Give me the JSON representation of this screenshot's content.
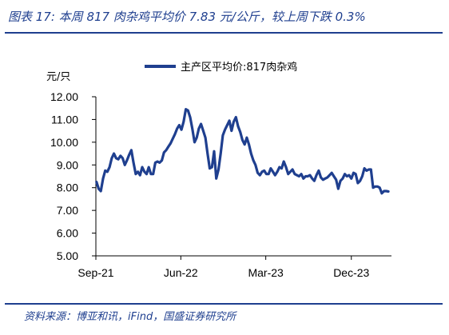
{
  "header": {
    "title": "图表 17:  本周 817 肉杂鸡平均价 7.83 元/公斤，较上周下跌 0.3%"
  },
  "footer": {
    "source": "资料来源：博亚和讯，iFind，国盛证券研究所"
  },
  "chart_data": {
    "type": "line",
    "title": "",
    "ylabel": "元/只",
    "xlabel": "",
    "ylim": [
      5.0,
      12.0
    ],
    "y_ticks": [
      "5.00",
      "6.00",
      "7.00",
      "8.00",
      "9.00",
      "10.00",
      "11.00",
      "12.00"
    ],
    "x_ticks": [
      "Sep-21",
      "Jun-22",
      "Mar-23",
      "Dec-23"
    ],
    "legend": {
      "position": "top",
      "entries": [
        "主产区平均价:817肉杂鸡"
      ]
    },
    "colors": {
      "series": "#1f3f8f"
    },
    "series": [
      {
        "name": "主产区平均价:817肉杂鸡",
        "x": [
          "2021-09-03",
          "2021-09-10",
          "2021-09-17",
          "2021-09-24",
          "2021-10-01",
          "2021-10-08",
          "2021-10-15",
          "2021-10-22",
          "2021-10-29",
          "2021-11-05",
          "2021-11-12",
          "2021-11-19",
          "2021-11-26",
          "2021-12-03",
          "2021-12-10",
          "2021-12-17",
          "2021-12-24",
          "2021-12-31",
          "2022-01-07",
          "2022-01-14",
          "2022-01-21",
          "2022-01-28",
          "2022-02-04",
          "2022-02-11",
          "2022-02-18",
          "2022-02-25",
          "2022-03-04",
          "2022-03-11",
          "2022-03-18",
          "2022-03-25",
          "2022-04-01",
          "2022-04-08",
          "2022-04-15",
          "2022-04-22",
          "2022-04-29",
          "2022-05-06",
          "2022-05-13",
          "2022-05-20",
          "2022-05-27",
          "2022-06-03",
          "2022-06-10",
          "2022-06-17",
          "2022-06-24",
          "2022-07-01",
          "2022-07-08",
          "2022-07-15",
          "2022-07-22",
          "2022-07-29",
          "2022-08-05",
          "2022-08-12",
          "2022-08-19",
          "2022-08-26",
          "2022-09-02",
          "2022-09-09",
          "2022-09-16",
          "2022-09-23",
          "2022-09-30",
          "2022-10-07",
          "2022-10-14",
          "2022-10-21",
          "2022-10-28",
          "2022-11-04",
          "2022-11-11",
          "2022-11-18",
          "2022-11-25",
          "2022-12-02",
          "2022-12-09",
          "2022-12-16",
          "2022-12-23",
          "2022-12-30",
          "2023-01-06",
          "2023-01-13",
          "2023-01-20",
          "2023-01-27",
          "2023-02-03",
          "2023-02-10",
          "2023-02-17",
          "2023-02-24",
          "2023-03-03",
          "2023-03-10",
          "2023-03-17",
          "2023-03-24",
          "2023-03-31",
          "2023-04-07",
          "2023-04-14",
          "2023-04-21",
          "2023-04-28",
          "2023-05-05",
          "2023-05-12",
          "2023-05-19",
          "2023-05-26",
          "2023-06-02",
          "2023-06-09",
          "2023-06-16",
          "2023-06-23",
          "2023-06-30",
          "2023-07-07",
          "2023-07-14",
          "2023-07-21",
          "2023-07-28",
          "2023-08-04",
          "2023-08-11",
          "2023-08-18",
          "2023-08-25",
          "2023-09-01",
          "2023-09-08",
          "2023-09-15",
          "2023-09-22",
          "2023-09-29",
          "2023-10-06",
          "2023-10-13",
          "2023-10-20",
          "2023-10-27",
          "2023-11-03",
          "2023-11-10",
          "2023-11-17",
          "2023-11-24",
          "2023-12-01",
          "2023-12-08",
          "2023-12-15",
          "2023-12-22",
          "2023-12-29",
          "2024-01-05",
          "2024-01-12",
          "2024-01-19",
          "2024-01-26",
          "2024-02-02",
          "2024-02-09",
          "2024-02-16",
          "2024-02-23",
          "2024-03-01",
          "2024-03-08",
          "2024-03-15",
          "2024-03-22",
          "2024-03-29"
        ],
        "y": [
          8.25,
          7.95,
          7.85,
          8.4,
          8.75,
          8.7,
          8.9,
          9.3,
          9.5,
          9.3,
          9.25,
          9.4,
          9.3,
          9.0,
          9.2,
          9.45,
          9.65,
          9.1,
          8.6,
          8.7,
          8.55,
          8.9,
          8.7,
          8.6,
          8.9,
          8.6,
          8.6,
          9.1,
          9.15,
          9.1,
          9.2,
          9.55,
          9.65,
          9.8,
          9.95,
          10.15,
          10.35,
          10.6,
          10.75,
          10.55,
          10.9,
          11.45,
          11.4,
          11.1,
          10.6,
          10.0,
          10.2,
          10.6,
          10.8,
          10.5,
          10.2,
          9.5,
          8.85,
          8.9,
          9.6,
          8.4,
          8.8,
          9.5,
          10.3,
          10.55,
          10.75,
          10.95,
          10.5,
          10.9,
          11.1,
          10.7,
          10.45,
          10.1,
          9.9,
          10.2,
          9.9,
          9.5,
          9.2,
          9.0,
          8.65,
          8.55,
          8.7,
          8.75,
          8.6,
          8.6,
          8.85,
          8.7,
          8.55,
          8.7,
          8.9,
          8.85,
          9.15,
          8.9,
          8.6,
          8.7,
          8.8,
          8.6,
          8.55,
          8.5,
          8.6,
          8.4,
          8.5,
          8.5,
          8.55,
          8.4,
          8.3,
          8.55,
          8.75,
          8.45,
          8.35,
          8.4,
          8.45,
          8.55,
          8.65,
          8.5,
          8.35,
          7.95,
          8.3,
          8.4,
          8.6,
          8.5,
          8.55,
          8.4,
          8.65,
          8.6,
          8.2,
          8.3,
          8.5,
          8.85,
          8.75,
          8.8,
          8.8,
          8.0,
          8.05,
          8.05,
          8.0,
          7.75,
          7.85,
          7.85,
          7.83
        ]
      }
    ]
  }
}
